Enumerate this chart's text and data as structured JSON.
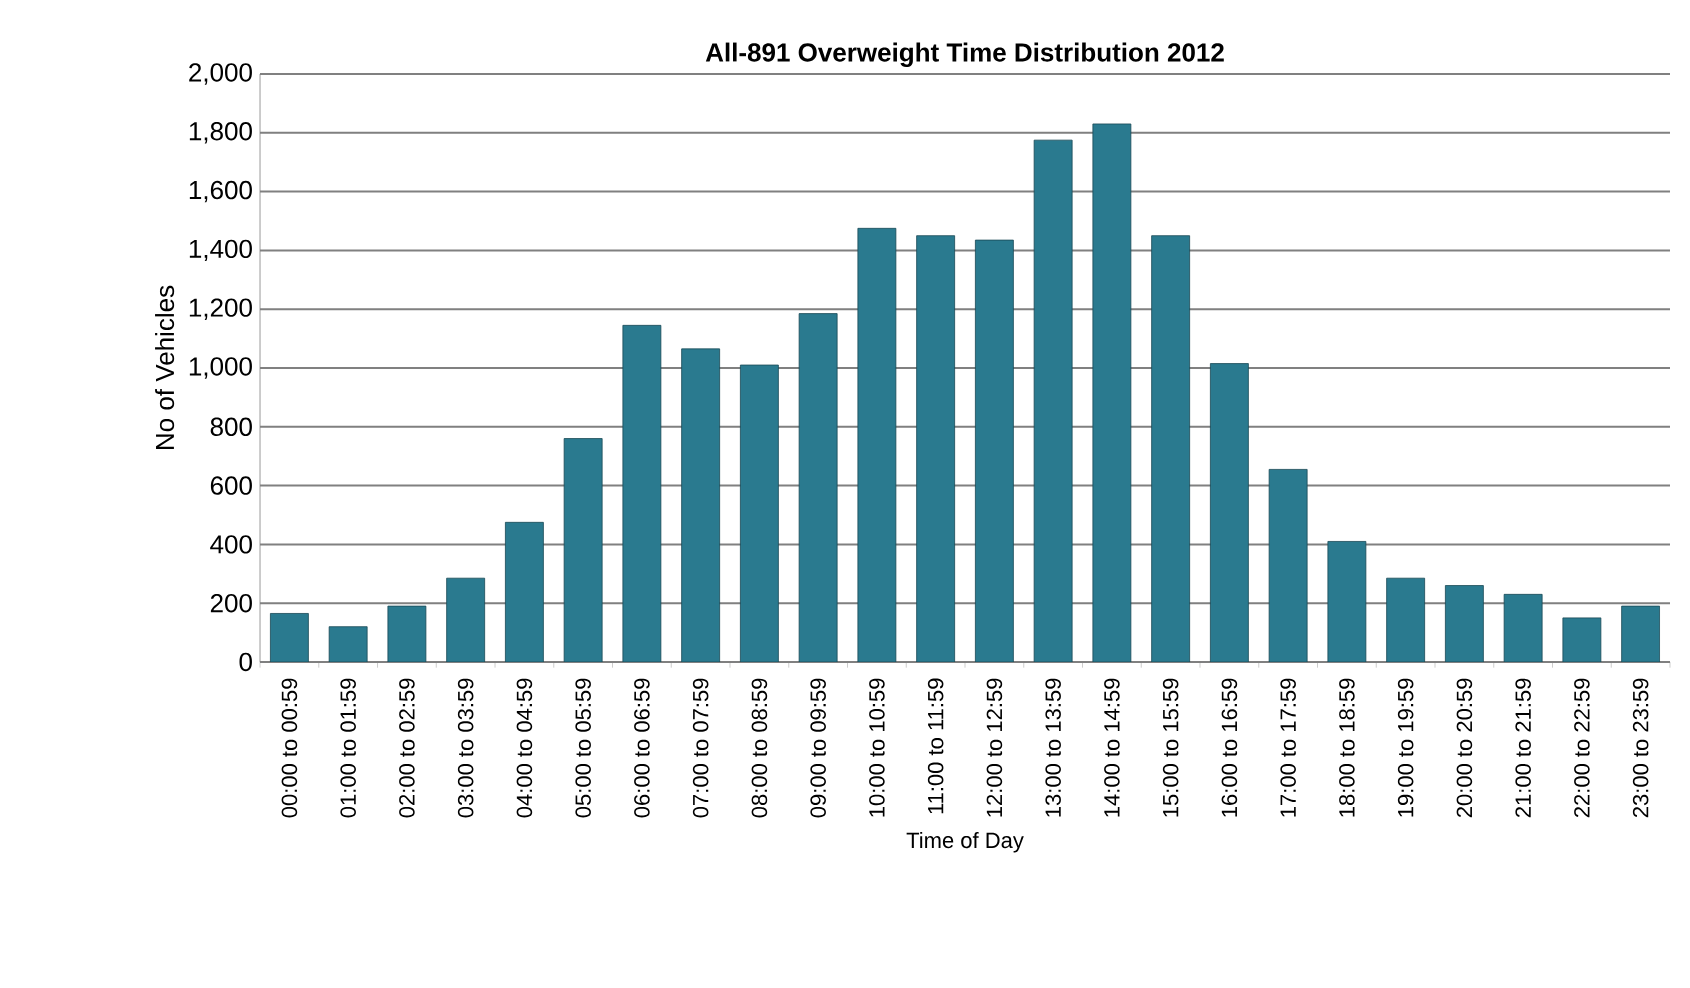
{
  "chart_data": {
    "type": "bar",
    "title": "All-891 Overweight Time Distribution 2012",
    "xlabel": "Time of Day",
    "ylabel": "No of Vehicles",
    "categories": [
      "00:00 to 00:59",
      "01:00 to 01:59",
      "02:00 to 02:59",
      "03:00 to 03:59",
      "04:00 to 04:59",
      "05:00 to 05:59",
      "06:00 to 06:59",
      "07:00 to 07:59",
      "08:00 to 08:59",
      "09:00 to 09:59",
      "10:00 to 10:59",
      "11:00 to 11:59",
      "12:00 to 12:59",
      "13:00 to 13:59",
      "14:00 to 14:59",
      "15:00 to 15:59",
      "16:00 to 16:59",
      "17:00 to 17:59",
      "18:00 to 18:59",
      "19:00 to 19:59",
      "20:00 to 20:59",
      "21:00 to 21:59",
      "22:00 to 22:59",
      "23:00 to 23:59"
    ],
    "values": [
      165,
      120,
      190,
      285,
      475,
      760,
      1145,
      1065,
      1010,
      1185,
      1475,
      1450,
      1435,
      1775,
      1830,
      1450,
      1015,
      655,
      410,
      285,
      260,
      230,
      150,
      190
    ],
    "color": "#2a7a8f",
    "ylim": [
      0,
      2000
    ],
    "yticks": [
      {
        "value": 0,
        "label": "0"
      },
      {
        "value": 200,
        "label": "200"
      },
      {
        "value": 400,
        "label": "400"
      },
      {
        "value": 600,
        "label": "600"
      },
      {
        "value": 800,
        "label": "800"
      },
      {
        "value": 1000,
        "label": "1,000"
      },
      {
        "value": 1200,
        "label": "1,200"
      },
      {
        "value": 1400,
        "label": "1,400"
      },
      {
        "value": 1600,
        "label": "1,600"
      },
      {
        "value": 1800,
        "label": "1,800"
      },
      {
        "value": 2000,
        "label": "2,000"
      }
    ],
    "grid": "y"
  }
}
